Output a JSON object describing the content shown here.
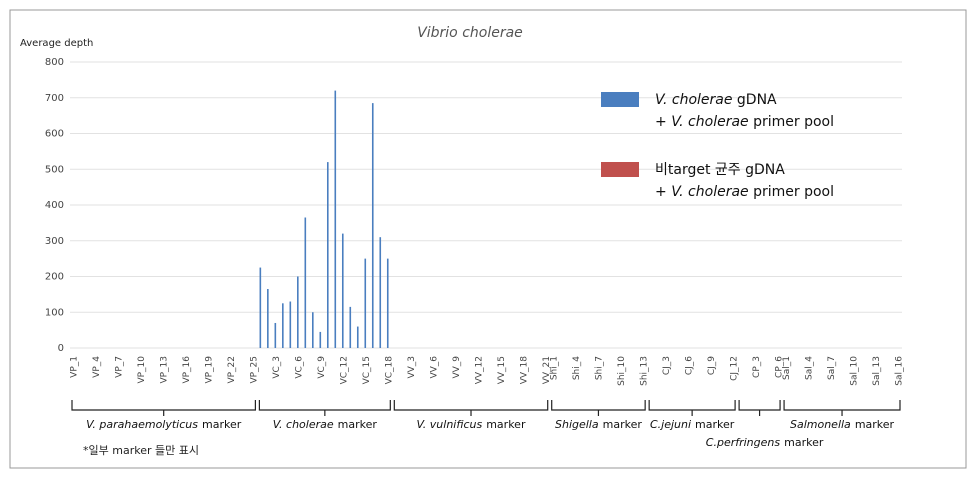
{
  "chart_data": {
    "type": "bar",
    "title": "Vibrio cholerae",
    "y_label": "Average depth",
    "categories": [
      "VP_1",
      null,
      null,
      "VP_4",
      null,
      null,
      "VP_7",
      null,
      null,
      "VP_10",
      null,
      null,
      "VP_13",
      null,
      null,
      "VP_16",
      null,
      null,
      "VP_19",
      null,
      null,
      "VP_22",
      null,
      null,
      "VP_25",
      null,
      null,
      "VC_3",
      null,
      null,
      "VC_6",
      null,
      null,
      "VC_9",
      null,
      null,
      "VC_12",
      null,
      null,
      "VC_15",
      null,
      null,
      "VC_18",
      null,
      null,
      "VV_3",
      null,
      null,
      "VV_6",
      null,
      null,
      "VV_9",
      null,
      null,
      "VV_12",
      null,
      null,
      "VV_15",
      null,
      null,
      "VV_18",
      null,
      null,
      "VV_21",
      "Shi_1",
      null,
      null,
      "Shi_4",
      null,
      null,
      "Shi_7",
      null,
      null,
      "Shi_10",
      null,
      null,
      "Shi_13",
      null,
      null,
      "CJ_3",
      null,
      null,
      "CJ_6",
      null,
      null,
      "CJ_9",
      null,
      null,
      "CJ_12",
      null,
      null,
      "CP_3",
      null,
      null,
      "CP_6",
      "Sal_1",
      null,
      null,
      "Sal_4",
      null,
      null,
      "Sal_7",
      null,
      null,
      "Sal_10",
      null,
      null,
      "Sal_13",
      null,
      null,
      "Sal_16"
    ],
    "series": [
      {
        "name": "V. cholerae gDNA\n+ V. cholerae primer pool",
        "color": "#4a7ebf",
        "values": [
          0,
          0,
          0,
          0,
          0,
          0,
          0,
          0,
          0,
          0,
          0,
          0,
          0,
          0,
          0,
          0,
          0,
          0,
          0,
          0,
          0,
          0,
          0,
          0,
          0,
          225,
          165,
          70,
          125,
          130,
          200,
          365,
          100,
          45,
          520,
          720,
          320,
          115,
          60,
          250,
          685,
          310,
          250,
          0,
          0,
          0,
          0,
          0,
          0,
          0,
          0,
          0,
          0,
          0,
          0,
          0,
          0,
          0,
          0,
          0,
          0,
          0,
          0,
          0,
          0,
          0,
          0,
          0,
          0,
          0,
          0,
          0,
          0,
          0,
          0,
          0,
          0,
          0,
          0,
          0,
          0,
          0,
          0,
          0,
          0,
          0,
          0,
          0,
          0,
          0,
          0,
          0,
          0,
          0,
          0,
          0,
          0,
          0,
          0,
          0,
          0,
          0,
          0,
          0,
          0,
          0,
          0,
          0,
          0,
          0,
          0
        ]
      },
      {
        "name": "비target 균주 gDNA\n+ V. cholerae primer pool",
        "color": "#c0504d",
        "values": [
          0,
          0,
          0,
          0,
          0,
          0,
          0,
          0,
          0,
          0,
          0,
          0,
          0,
          0,
          0,
          0,
          0,
          0,
          0,
          0,
          0,
          0,
          0,
          0,
          0,
          0,
          0,
          0,
          0,
          0,
          0,
          0,
          0,
          0,
          0,
          0,
          0,
          0,
          0,
          0,
          0,
          0,
          0,
          0,
          0,
          0,
          0,
          0,
          0,
          0,
          0,
          0,
          0,
          0,
          0,
          0,
          0,
          0,
          0,
          0,
          0,
          0,
          0,
          0,
          0,
          0,
          0,
          0,
          0,
          0,
          0,
          0,
          0,
          0,
          0,
          0,
          0,
          0,
          0,
          0,
          0,
          0,
          0,
          0,
          0,
          0,
          0,
          0,
          0,
          0,
          0,
          0,
          0,
          0,
          0,
          0,
          0,
          0,
          0,
          0,
          0,
          0,
          0,
          0,
          0,
          0,
          0,
          0,
          0,
          0,
          0
        ]
      }
    ],
    "ylim": [
      0,
      800
    ],
    "yticks": [
      0,
      100,
      200,
      300,
      400,
      500,
      600,
      700,
      800
    ],
    "grid": true,
    "groups": [
      {
        "name": "V. parahaemolyticus",
        "suffix": "marker"
      },
      {
        "name": "V. cholerae",
        "suffix": "marker"
      },
      {
        "name": "V. vulnificus",
        "suffix": "marker"
      },
      {
        "name": "Shigella",
        "suffix": "marker"
      },
      {
        "name": "C.jejuni",
        "suffix": "marker"
      },
      {
        "name": "C.perfringens",
        "suffix": "marker"
      },
      {
        "name": "Salmonella",
        "suffix": "marker"
      }
    ],
    "note": "*일부 marker 들만 표시"
  }
}
